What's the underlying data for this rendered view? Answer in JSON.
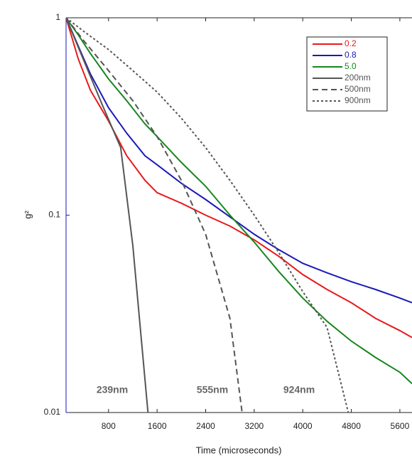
{
  "chart_data": {
    "type": "line",
    "x_label": "Time (microseconds)",
    "y_label": "g²",
    "log_y": true,
    "xlim": [
      100,
      5800
    ],
    "xticks": [
      800,
      1600,
      2400,
      3200,
      4000,
      4800,
      5600
    ],
    "ylim": [
      0.01,
      1
    ],
    "yticks": [
      0.01,
      0.1,
      1
    ],
    "legend": "upper right",
    "series": [
      {
        "name": "0.2",
        "color": "#e8191c",
        "dash": "solid",
        "x": [
          100,
          300,
          500,
          800,
          1100,
          1400,
          1600,
          2000,
          2400,
          2800,
          3200,
          3600,
          4000,
          4400,
          4800,
          5200,
          5600,
          5800
        ],
        "values": [
          1,
          0.62,
          0.43,
          0.3,
          0.2,
          0.15,
          0.13,
          0.115,
          0.1,
          0.088,
          0.075,
          0.062,
          0.05,
          0.042,
          0.036,
          0.03,
          0.026,
          0.024
        ]
      },
      {
        "name": "0.8",
        "color": "#1a1aba",
        "dash": "solid",
        "x": [
          100,
          300,
          500,
          800,
          1100,
          1400,
          1600,
          2000,
          2400,
          2800,
          3200,
          3600,
          4000,
          4400,
          4800,
          5200,
          5600,
          5800
        ],
        "values": [
          1,
          0.72,
          0.52,
          0.35,
          0.26,
          0.2,
          0.18,
          0.145,
          0.12,
          0.098,
          0.08,
          0.067,
          0.057,
          0.051,
          0.046,
          0.042,
          0.038,
          0.036
        ]
      },
      {
        "name": "5.0",
        "color": "#17871d",
        "dash": "solid",
        "x": [
          100,
          300,
          500,
          800,
          1100,
          1400,
          1600,
          2000,
          2400,
          2800,
          3200,
          3600,
          4000,
          4400,
          4800,
          5200,
          5600,
          5800
        ],
        "values": [
          1,
          0.82,
          0.66,
          0.49,
          0.38,
          0.29,
          0.25,
          0.185,
          0.14,
          0.1,
          0.073,
          0.052,
          0.038,
          0.029,
          0.023,
          0.019,
          0.016,
          0.014
        ]
      },
      {
        "name": "200nm",
        "color": "#555555",
        "dash": "solid",
        "x": [
          100,
          400,
          700,
          1000,
          1200,
          1450
        ],
        "values": [
          1,
          0.6,
          0.36,
          0.22,
          0.07,
          0.01
        ]
      },
      {
        "name": "500nm",
        "color": "#555555",
        "dash": "dashed",
        "x": [
          100,
          400,
          800,
          1200,
          1600,
          2000,
          2400,
          2800,
          3000
        ],
        "values": [
          1,
          0.76,
          0.54,
          0.38,
          0.25,
          0.15,
          0.08,
          0.03,
          0.01
        ]
      },
      {
        "name": "900nm",
        "color": "#555555",
        "dash": "dotted",
        "x": [
          100,
          400,
          800,
          1200,
          1600,
          2000,
          2400,
          2800,
          3200,
          3600,
          4000,
          4400,
          4750
        ],
        "values": [
          1,
          0.85,
          0.69,
          0.54,
          0.42,
          0.31,
          0.22,
          0.15,
          0.1,
          0.065,
          0.041,
          0.027,
          0.01
        ]
      }
    ],
    "annotations": [
      "239nm",
      "555nm",
      "924nm"
    ]
  }
}
